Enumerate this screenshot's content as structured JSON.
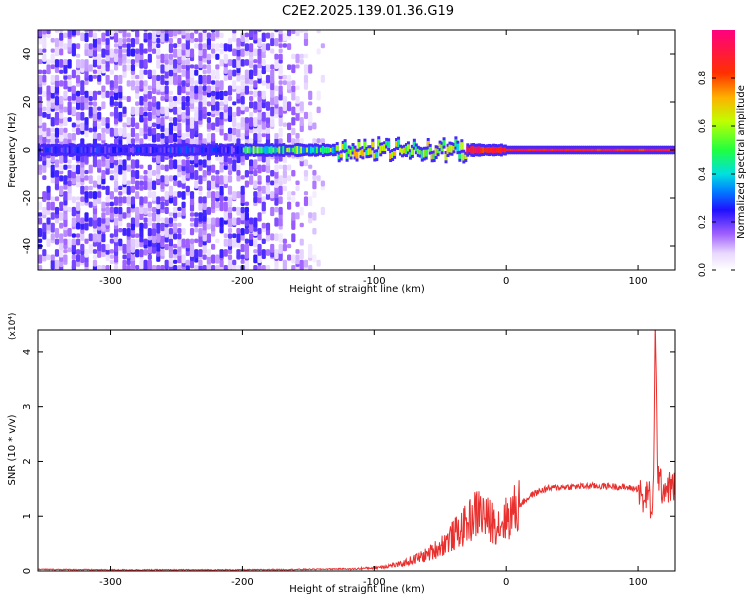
{
  "title": "C2E2.2025.139.01.36.G19",
  "colors": {
    "line": "#e8302e",
    "axis": "#000000",
    "colormap": [
      "#ffffff",
      "#e8d8ff",
      "#b080ff",
      "#7a22ee",
      "#3a10f0",
      "#0000ff",
      "#00b0ff",
      "#00ffd0",
      "#50ff00",
      "#d0ff00",
      "#ffb000",
      "#ff3000",
      "#ff00a0"
    ]
  },
  "chart_data": [
    {
      "type": "heatmap",
      "name": "spectrogram",
      "title": "C2E2.2025.139.01.36.G19",
      "xlabel": "Height of straight line (km)",
      "ylabel": "Frequency (Hz)",
      "xlim": [
        -355,
        128
      ],
      "ylim": [
        -50,
        50
      ],
      "xticks": [
        -300,
        -200,
        -100,
        0,
        100
      ],
      "yticks": [
        -40,
        -20,
        0,
        20,
        40
      ],
      "colorbar": {
        "label": "Normalized spectral amplitude",
        "range": [
          0,
          1
        ],
        "ticks": [
          "0.0",
          "0.2",
          "0.4",
          "0.6",
          "0.8"
        ]
      },
      "features": [
        {
          "description": "noise",
          "x_range": [
            -355,
            -140
          ],
          "freq_range": [
            -50,
            50
          ],
          "amplitude": 0.15
        },
        {
          "description": "carrier",
          "x_range": [
            -355,
            128
          ],
          "freq": 0,
          "amplitude_low": 0.25,
          "amplitude_high": 0.95
        }
      ]
    },
    {
      "type": "line",
      "name": "snr",
      "xlabel": "Height of straight line (km)",
      "ylabel": "SNR (10 * v/v)",
      "y_multiplier": "(x10⁴)",
      "xlim": [
        -355,
        128
      ],
      "ylim": [
        0,
        4.4
      ],
      "xticks": [
        -300,
        -200,
        -100,
        0,
        100
      ],
      "yticks": [
        0,
        1,
        2,
        3,
        4
      ],
      "series": [
        {
          "x": [
            -355,
            -300,
            -250,
            -200,
            -150,
            -120,
            -100,
            -80,
            -60,
            -50,
            -40,
            -30,
            -25,
            -20,
            -15,
            -10,
            -5,
            0,
            10,
            20,
            30,
            40,
            60,
            80,
            100,
            105,
            108,
            110,
            112,
            113,
            115,
            118,
            120,
            128
          ],
          "y": [
            0.02,
            0.01,
            0.01,
            0.01,
            0.02,
            0.03,
            0.06,
            0.12,
            0.3,
            0.45,
            0.65,
            0.85,
            1.0,
            1.1,
            0.95,
            0.9,
            0.85,
            0.95,
            1.2,
            1.4,
            1.5,
            1.53,
            1.55,
            1.55,
            1.5,
            1.2,
            1.6,
            0.8,
            2.0,
            4.4,
            1.8,
            1.5,
            1.53,
            1.53
          ]
        }
      ]
    }
  ]
}
